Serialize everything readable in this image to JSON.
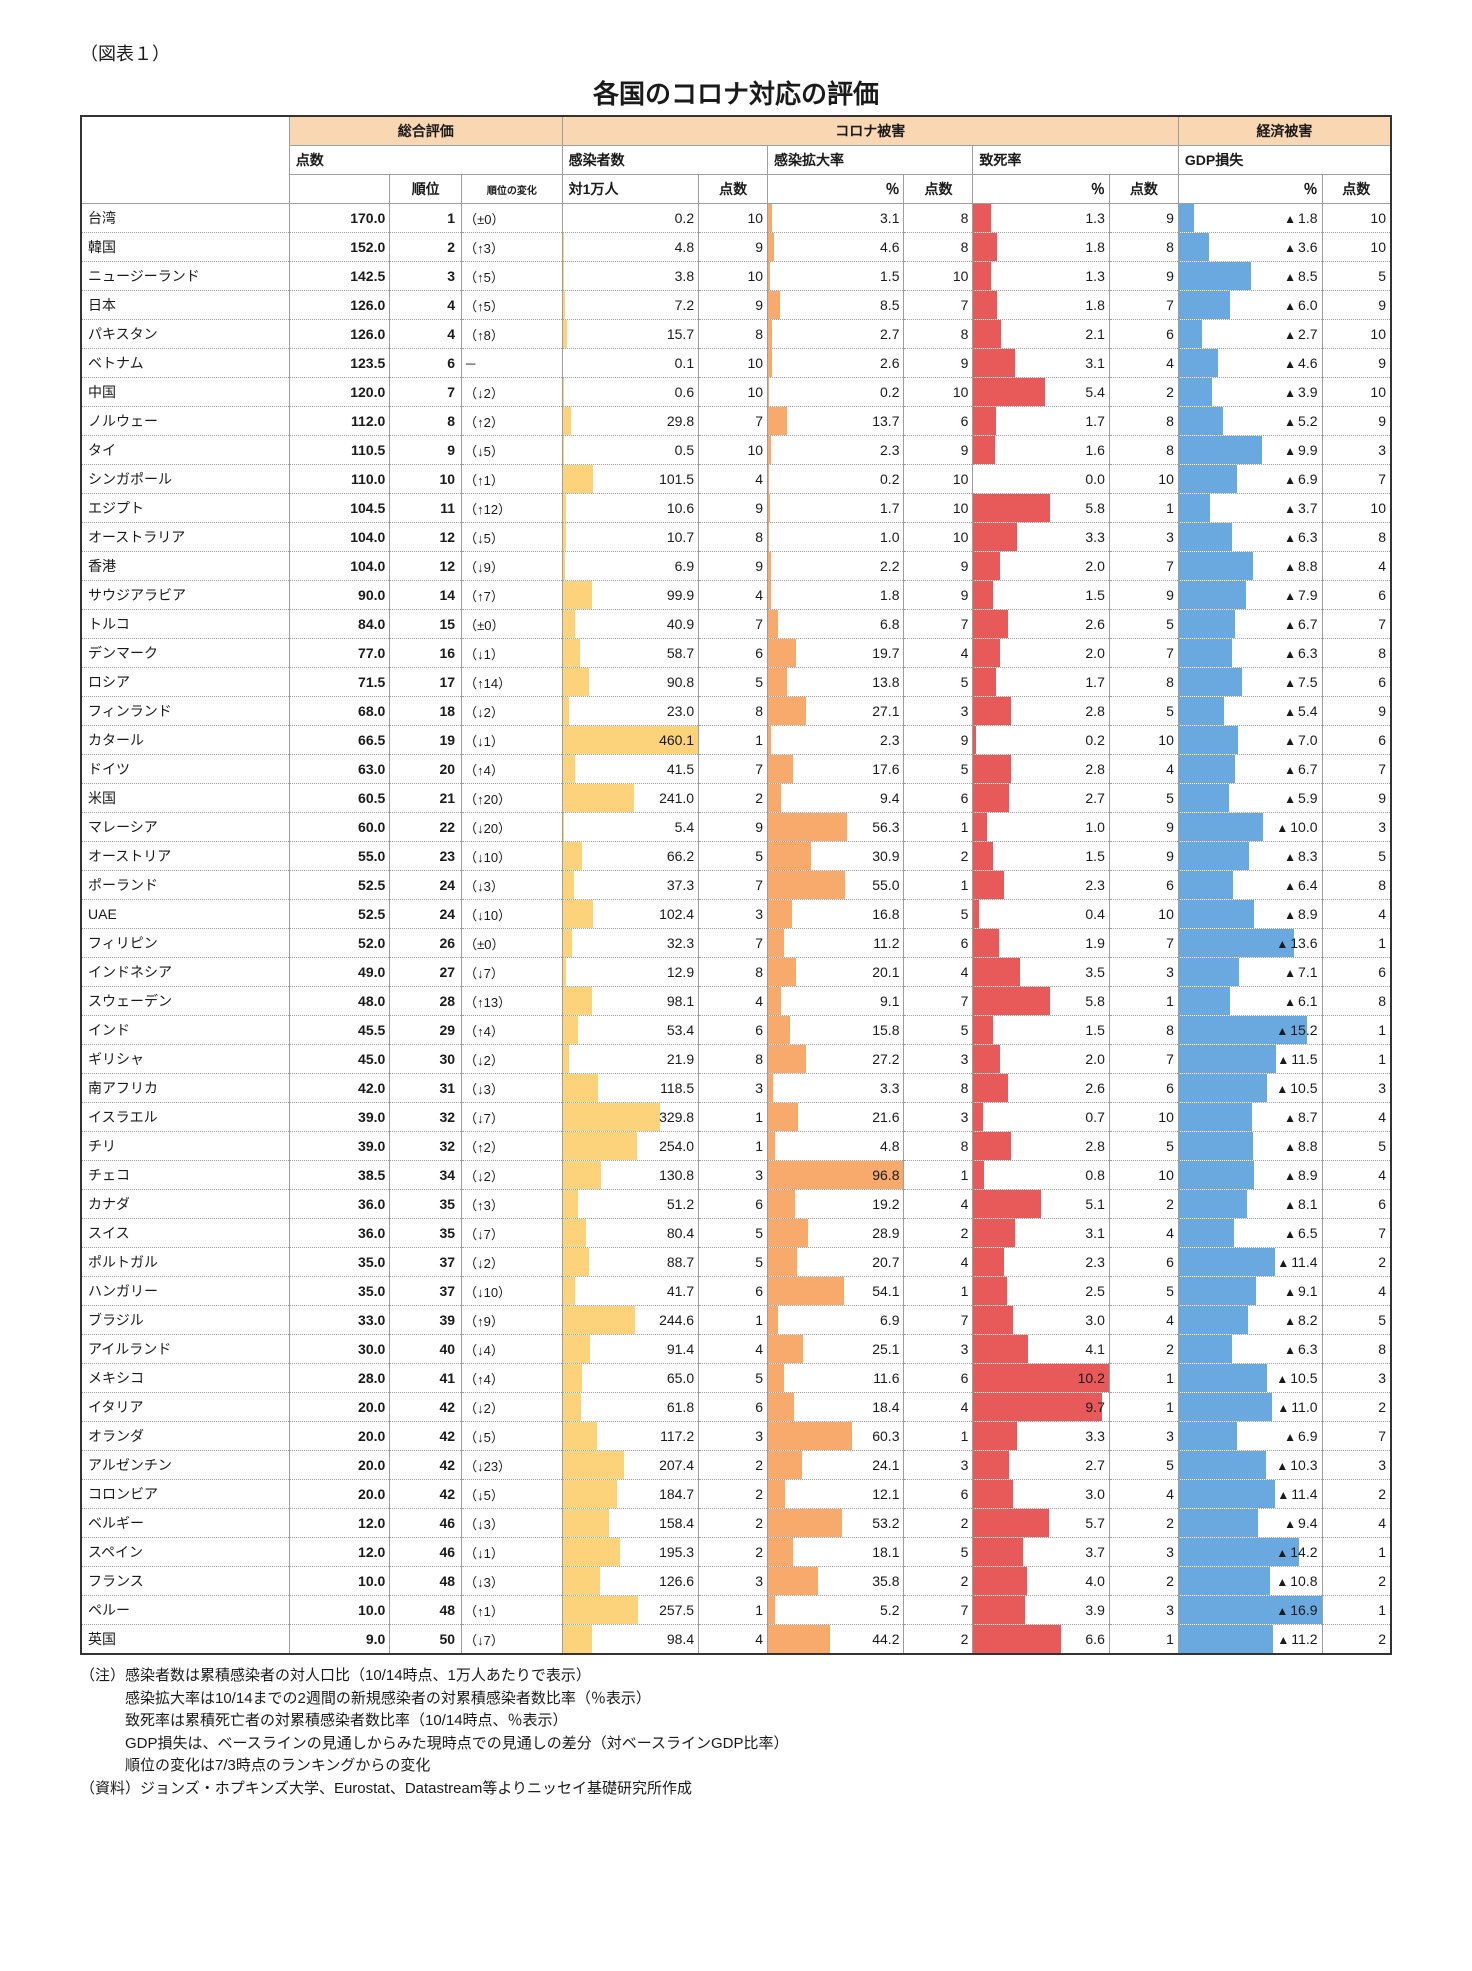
{
  "caption": "（図表１）",
  "title": "各国のコロナ対応の評価",
  "headers": {
    "overall": "総合評価",
    "corona": "コロナ被害",
    "econ": "経済被害",
    "score": "点数",
    "rank": "順位",
    "rankchange": "順位の変化",
    "infected": "感染者数",
    "infected_sub": "対1万人",
    "spread": "感染拡大率",
    "mortality": "致死率",
    "gdp": "GDP損失",
    "pct": "％",
    "pts": "点数"
  },
  "colors": {
    "bar_yellow": "#fcd37a",
    "bar_orange": "#f7aa6b",
    "bar_red": "#e85a5a",
    "bar_blue": "#6aa9e0",
    "header_peach": "#fad7b3"
  },
  "max": {
    "infected": 460.1,
    "spread": 96.8,
    "mortality": 10.2,
    "gdp": 16.9
  },
  "rows": [
    {
      "country": "台湾",
      "score": 170.0,
      "rank": 1,
      "change": "（±0）",
      "infected": 0.2,
      "infected_pts": 10,
      "spread": 3.1,
      "spread_pts": 8,
      "mort": 1.3,
      "mort_pts": 9,
      "gdp": 1.8,
      "gdp_pts": 10
    },
    {
      "country": "韓国",
      "score": 152.0,
      "rank": 2,
      "change": "（↑3）",
      "infected": 4.8,
      "infected_pts": 9,
      "spread": 4.6,
      "spread_pts": 8,
      "mort": 1.8,
      "mort_pts": 8,
      "gdp": 3.6,
      "gdp_pts": 10
    },
    {
      "country": "ニュージーランド",
      "score": 142.5,
      "rank": 3,
      "change": "（↑5）",
      "infected": 3.8,
      "infected_pts": 10,
      "spread": 1.5,
      "spread_pts": 10,
      "mort": 1.3,
      "mort_pts": 9,
      "gdp": 8.5,
      "gdp_pts": 5
    },
    {
      "country": "日本",
      "score": 126.0,
      "rank": 4,
      "change": "（↑5）",
      "infected": 7.2,
      "infected_pts": 9,
      "spread": 8.5,
      "spread_pts": 7,
      "mort": 1.8,
      "mort_pts": 7,
      "gdp": 6.0,
      "gdp_pts": 9
    },
    {
      "country": "パキスタン",
      "score": 126.0,
      "rank": 4,
      "change": "（↑8）",
      "infected": 15.7,
      "infected_pts": 8,
      "spread": 2.7,
      "spread_pts": 8,
      "mort": 2.1,
      "mort_pts": 6,
      "gdp": 2.7,
      "gdp_pts": 10
    },
    {
      "country": "ベトナム",
      "score": 123.5,
      "rank": 6,
      "change": " －",
      "infected": 0.1,
      "infected_pts": 10,
      "spread": 2.6,
      "spread_pts": 9,
      "mort": 3.1,
      "mort_pts": 4,
      "gdp": 4.6,
      "gdp_pts": 9
    },
    {
      "country": "中国",
      "score": 120.0,
      "rank": 7,
      "change": "（↓2）",
      "infected": 0.6,
      "infected_pts": 10,
      "spread": 0.2,
      "spread_pts": 10,
      "mort": 5.4,
      "mort_pts": 2,
      "gdp": 3.9,
      "gdp_pts": 10
    },
    {
      "country": "ノルウェー",
      "score": 112.0,
      "rank": 8,
      "change": "（↑2）",
      "infected": 29.8,
      "infected_pts": 7,
      "spread": 13.7,
      "spread_pts": 6,
      "mort": 1.7,
      "mort_pts": 8,
      "gdp": 5.2,
      "gdp_pts": 9
    },
    {
      "country": "タイ",
      "score": 110.5,
      "rank": 9,
      "change": "（↓5）",
      "infected": 0.5,
      "infected_pts": 10,
      "spread": 2.3,
      "spread_pts": 9,
      "mort": 1.6,
      "mort_pts": 8,
      "gdp": 9.9,
      "gdp_pts": 3
    },
    {
      "country": "シンガポール",
      "score": 110.0,
      "rank": 10,
      "change": "（↑1）",
      "infected": 101.5,
      "infected_pts": 4,
      "spread": 0.2,
      "spread_pts": 10,
      "mort": 0.0,
      "mort_pts": 10,
      "gdp": 6.9,
      "gdp_pts": 7
    },
    {
      "country": "エジプト",
      "score": 104.5,
      "rank": 11,
      "change": "（↑12）",
      "infected": 10.6,
      "infected_pts": 9,
      "spread": 1.7,
      "spread_pts": 10,
      "mort": 5.8,
      "mort_pts": 1,
      "gdp": 3.7,
      "gdp_pts": 10
    },
    {
      "country": "オーストラリア",
      "score": 104.0,
      "rank": 12,
      "change": "（↓5）",
      "infected": 10.7,
      "infected_pts": 8,
      "spread": 1.0,
      "spread_pts": 10,
      "mort": 3.3,
      "mort_pts": 3,
      "gdp": 6.3,
      "gdp_pts": 8
    },
    {
      "country": "香港",
      "score": 104.0,
      "rank": 12,
      "change": "（↓9）",
      "infected": 6.9,
      "infected_pts": 9,
      "spread": 2.2,
      "spread_pts": 9,
      "mort": 2.0,
      "mort_pts": 7,
      "gdp": 8.8,
      "gdp_pts": 4
    },
    {
      "country": "サウジアラビア",
      "score": 90.0,
      "rank": 14,
      "change": "（↑7）",
      "infected": 99.9,
      "infected_pts": 4,
      "spread": 1.8,
      "spread_pts": 9,
      "mort": 1.5,
      "mort_pts": 9,
      "gdp": 7.9,
      "gdp_pts": 6
    },
    {
      "country": "トルコ",
      "score": 84.0,
      "rank": 15,
      "change": "（±0）",
      "infected": 40.9,
      "infected_pts": 7,
      "spread": 6.8,
      "spread_pts": 7,
      "mort": 2.6,
      "mort_pts": 5,
      "gdp": 6.7,
      "gdp_pts": 7
    },
    {
      "country": "デンマーク",
      "score": 77.0,
      "rank": 16,
      "change": "（↓1）",
      "infected": 58.7,
      "infected_pts": 6,
      "spread": 19.7,
      "spread_pts": 4,
      "mort": 2.0,
      "mort_pts": 7,
      "gdp": 6.3,
      "gdp_pts": 8
    },
    {
      "country": "ロシア",
      "score": 71.5,
      "rank": 17,
      "change": "（↑14）",
      "infected": 90.8,
      "infected_pts": 5,
      "spread": 13.8,
      "spread_pts": 5,
      "mort": 1.7,
      "mort_pts": 8,
      "gdp": 7.5,
      "gdp_pts": 6
    },
    {
      "country": "フィンランド",
      "score": 68.0,
      "rank": 18,
      "change": "（↓2）",
      "infected": 23.0,
      "infected_pts": 8,
      "spread": 27.1,
      "spread_pts": 3,
      "mort": 2.8,
      "mort_pts": 5,
      "gdp": 5.4,
      "gdp_pts": 9
    },
    {
      "country": "カタール",
      "score": 66.5,
      "rank": 19,
      "change": "（↓1）",
      "infected": 460.1,
      "infected_pts": 1,
      "spread": 2.3,
      "spread_pts": 9,
      "mort": 0.2,
      "mort_pts": 10,
      "gdp": 7.0,
      "gdp_pts": 6
    },
    {
      "country": "ドイツ",
      "score": 63.0,
      "rank": 20,
      "change": "（↑4）",
      "infected": 41.5,
      "infected_pts": 7,
      "spread": 17.6,
      "spread_pts": 5,
      "mort": 2.8,
      "mort_pts": 4,
      "gdp": 6.7,
      "gdp_pts": 7
    },
    {
      "country": "米国",
      "score": 60.5,
      "rank": 21,
      "change": "（↑20）",
      "infected": 241.0,
      "infected_pts": 2,
      "spread": 9.4,
      "spread_pts": 6,
      "mort": 2.7,
      "mort_pts": 5,
      "gdp": 5.9,
      "gdp_pts": 9
    },
    {
      "country": "マレーシア",
      "score": 60.0,
      "rank": 22,
      "change": "（↓20）",
      "infected": 5.4,
      "infected_pts": 9,
      "spread": 56.3,
      "spread_pts": 1,
      "mort": 1.0,
      "mort_pts": 9,
      "gdp": 10.0,
      "gdp_pts": 3
    },
    {
      "country": "オーストリア",
      "score": 55.0,
      "rank": 23,
      "change": "（↓10）",
      "infected": 66.2,
      "infected_pts": 5,
      "spread": 30.9,
      "spread_pts": 2,
      "mort": 1.5,
      "mort_pts": 9,
      "gdp": 8.3,
      "gdp_pts": 5
    },
    {
      "country": "ポーランド",
      "score": 52.5,
      "rank": 24,
      "change": "（↓3）",
      "infected": 37.3,
      "infected_pts": 7,
      "spread": 55.0,
      "spread_pts": 1,
      "mort": 2.3,
      "mort_pts": 6,
      "gdp": 6.4,
      "gdp_pts": 8
    },
    {
      "country": "UAE",
      "score": 52.5,
      "rank": 24,
      "change": "（↓10）",
      "infected": 102.4,
      "infected_pts": 3,
      "spread": 16.8,
      "spread_pts": 5,
      "mort": 0.4,
      "mort_pts": 10,
      "gdp": 8.9,
      "gdp_pts": 4
    },
    {
      "country": "フィリピン",
      "score": 52.0,
      "rank": 26,
      "change": "（±0）",
      "infected": 32.3,
      "infected_pts": 7,
      "spread": 11.2,
      "spread_pts": 6,
      "mort": 1.9,
      "mort_pts": 7,
      "gdp": 13.6,
      "gdp_pts": 1
    },
    {
      "country": "インドネシア",
      "score": 49.0,
      "rank": 27,
      "change": "（↓7）",
      "infected": 12.9,
      "infected_pts": 8,
      "spread": 20.1,
      "spread_pts": 4,
      "mort": 3.5,
      "mort_pts": 3,
      "gdp": 7.1,
      "gdp_pts": 6
    },
    {
      "country": "スウェーデン",
      "score": 48.0,
      "rank": 28,
      "change": "（↑13）",
      "infected": 98.1,
      "infected_pts": 4,
      "spread": 9.1,
      "spread_pts": 7,
      "mort": 5.8,
      "mort_pts": 1,
      "gdp": 6.1,
      "gdp_pts": 8
    },
    {
      "country": "インド",
      "score": 45.5,
      "rank": 29,
      "change": "（↑4）",
      "infected": 53.4,
      "infected_pts": 6,
      "spread": 15.8,
      "spread_pts": 5,
      "mort": 1.5,
      "mort_pts": 8,
      "gdp": 15.2,
      "gdp_pts": 1
    },
    {
      "country": "ギリシャ",
      "score": 45.0,
      "rank": 30,
      "change": "（↓2）",
      "infected": 21.9,
      "infected_pts": 8,
      "spread": 27.2,
      "spread_pts": 3,
      "mort": 2.0,
      "mort_pts": 7,
      "gdp": 11.5,
      "gdp_pts": 1
    },
    {
      "country": "南アフリカ",
      "score": 42.0,
      "rank": 31,
      "change": "（↓3）",
      "infected": 118.5,
      "infected_pts": 3,
      "spread": 3.3,
      "spread_pts": 8,
      "mort": 2.6,
      "mort_pts": 6,
      "gdp": 10.5,
      "gdp_pts": 3
    },
    {
      "country": "イスラエル",
      "score": 39.0,
      "rank": 32,
      "change": "（↓7）",
      "infected": 329.8,
      "infected_pts": 1,
      "spread": 21.6,
      "spread_pts": 3,
      "mort": 0.7,
      "mort_pts": 10,
      "gdp": 8.7,
      "gdp_pts": 4
    },
    {
      "country": "チリ",
      "score": 39.0,
      "rank": 32,
      "change": "（↑2）",
      "infected": 254.0,
      "infected_pts": 1,
      "spread": 4.8,
      "spread_pts": 8,
      "mort": 2.8,
      "mort_pts": 5,
      "gdp": 8.8,
      "gdp_pts": 5
    },
    {
      "country": "チェコ",
      "score": 38.5,
      "rank": 34,
      "change": "（↓2）",
      "infected": 130.8,
      "infected_pts": 3,
      "spread": 96.8,
      "spread_pts": 1,
      "mort": 0.8,
      "mort_pts": 10,
      "gdp": 8.9,
      "gdp_pts": 4
    },
    {
      "country": "カナダ",
      "score": 36.0,
      "rank": 35,
      "change": "（↑3）",
      "infected": 51.2,
      "infected_pts": 6,
      "spread": 19.2,
      "spread_pts": 4,
      "mort": 5.1,
      "mort_pts": 2,
      "gdp": 8.1,
      "gdp_pts": 6
    },
    {
      "country": "スイス",
      "score": 36.0,
      "rank": 35,
      "change": "（↓7）",
      "infected": 80.4,
      "infected_pts": 5,
      "spread": 28.9,
      "spread_pts": 2,
      "mort": 3.1,
      "mort_pts": 4,
      "gdp": 6.5,
      "gdp_pts": 7
    },
    {
      "country": "ポルトガル",
      "score": 35.0,
      "rank": 37,
      "change": "（↓2）",
      "infected": 88.7,
      "infected_pts": 5,
      "spread": 20.7,
      "spread_pts": 4,
      "mort": 2.3,
      "mort_pts": 6,
      "gdp": 11.4,
      "gdp_pts": 2
    },
    {
      "country": "ハンガリー",
      "score": 35.0,
      "rank": 37,
      "change": "（↓10）",
      "infected": 41.7,
      "infected_pts": 6,
      "spread": 54.1,
      "spread_pts": 1,
      "mort": 2.5,
      "mort_pts": 5,
      "gdp": 9.1,
      "gdp_pts": 4
    },
    {
      "country": "ブラジル",
      "score": 33.0,
      "rank": 39,
      "change": "（↑9）",
      "infected": 244.6,
      "infected_pts": 1,
      "spread": 6.9,
      "spread_pts": 7,
      "mort": 3.0,
      "mort_pts": 4,
      "gdp": 8.2,
      "gdp_pts": 5
    },
    {
      "country": "アイルランド",
      "score": 30.0,
      "rank": 40,
      "change": "（↓4）",
      "infected": 91.4,
      "infected_pts": 4,
      "spread": 25.1,
      "spread_pts": 3,
      "mort": 4.1,
      "mort_pts": 2,
      "gdp": 6.3,
      "gdp_pts": 8
    },
    {
      "country": "メキシコ",
      "score": 28.0,
      "rank": 41,
      "change": "（↑4）",
      "infected": 65.0,
      "infected_pts": 5,
      "spread": 11.6,
      "spread_pts": 6,
      "mort": 10.2,
      "mort_pts": 1,
      "gdp": 10.5,
      "gdp_pts": 3
    },
    {
      "country": "イタリア",
      "score": 20.0,
      "rank": 42,
      "change": "（↓2）",
      "infected": 61.8,
      "infected_pts": 6,
      "spread": 18.4,
      "spread_pts": 4,
      "mort": 9.7,
      "mort_pts": 1,
      "gdp": 11.0,
      "gdp_pts": 2
    },
    {
      "country": "オランダ",
      "score": 20.0,
      "rank": 42,
      "change": "（↓5）",
      "infected": 117.2,
      "infected_pts": 3,
      "spread": 60.3,
      "spread_pts": 1,
      "mort": 3.3,
      "mort_pts": 3,
      "gdp": 6.9,
      "gdp_pts": 7
    },
    {
      "country": "アルゼンチン",
      "score": 20.0,
      "rank": 42,
      "change": "（↓23）",
      "infected": 207.4,
      "infected_pts": 2,
      "spread": 24.1,
      "spread_pts": 3,
      "mort": 2.7,
      "mort_pts": 5,
      "gdp": 10.3,
      "gdp_pts": 3
    },
    {
      "country": "コロンビア",
      "score": 20.0,
      "rank": 42,
      "change": "（↓5）",
      "infected": 184.7,
      "infected_pts": 2,
      "spread": 12.1,
      "spread_pts": 6,
      "mort": 3.0,
      "mort_pts": 4,
      "gdp": 11.4,
      "gdp_pts": 2
    },
    {
      "country": "ベルギー",
      "score": 12.0,
      "rank": 46,
      "change": "（↓3）",
      "infected": 158.4,
      "infected_pts": 2,
      "spread": 53.2,
      "spread_pts": 2,
      "mort": 5.7,
      "mort_pts": 2,
      "gdp": 9.4,
      "gdp_pts": 4
    },
    {
      "country": "スペイン",
      "score": 12.0,
      "rank": 46,
      "change": "（↓1）",
      "infected": 195.3,
      "infected_pts": 2,
      "spread": 18.1,
      "spread_pts": 5,
      "mort": 3.7,
      "mort_pts": 3,
      "gdp": 14.2,
      "gdp_pts": 1
    },
    {
      "country": "フランス",
      "score": 10.0,
      "rank": 48,
      "change": "（↓3）",
      "infected": 126.6,
      "infected_pts": 3,
      "spread": 35.8,
      "spread_pts": 2,
      "mort": 4.0,
      "mort_pts": 2,
      "gdp": 10.8,
      "gdp_pts": 2
    },
    {
      "country": "ペルー",
      "score": 10.0,
      "rank": 48,
      "change": "（↑1）",
      "infected": 257.5,
      "infected_pts": 1,
      "spread": 5.2,
      "spread_pts": 7,
      "mort": 3.9,
      "mort_pts": 3,
      "gdp": 16.9,
      "gdp_pts": 1
    },
    {
      "country": "英国",
      "score": 9.0,
      "rank": 50,
      "change": "（↓7）",
      "infected": 98.4,
      "infected_pts": 4,
      "spread": 44.2,
      "spread_pts": 2,
      "mort": 6.6,
      "mort_pts": 1,
      "gdp": 11.2,
      "gdp_pts": 2
    }
  ],
  "notes": [
    "（注）感染者数は累積感染者の対人口比（10/14時点、1万人あたりで表示）",
    "　　　感染拡大率は10/14までの2週間の新規感染者の対累積感染者数比率（％表示）",
    "　　　致死率は累積死亡者の対累積感染者数比率（10/14時点、％表示）",
    "　　　GDP損失は、ベースラインの見通しからみた現時点での見通しの差分（対ベースラインGDP比率）",
    "　　　順位の変化は7/3時点のランキングからの変化",
    "（資料）ジョンズ・ホプキンズ大学、Eurostat、Datastream等よりニッセイ基礎研究所作成"
  ]
}
